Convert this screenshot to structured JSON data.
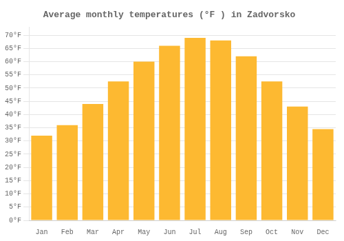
{
  "chart_data": {
    "type": "bar",
    "title": "Average monthly temperatures (°F ) in Zadvorsko",
    "categories": [
      "Jan",
      "Feb",
      "Mar",
      "Apr",
      "May",
      "Jun",
      "Jul",
      "Aug",
      "Sep",
      "Oct",
      "Nov",
      "Dec"
    ],
    "values": [
      32.0,
      36.0,
      44.0,
      52.5,
      60.0,
      66.0,
      69.0,
      68.0,
      62.0,
      52.5,
      43.0,
      34.5
    ],
    "color": "#FDB931",
    "ylim": [
      0,
      73
    ],
    "yticks": [
      {
        "value": 0,
        "label": "0°F"
      },
      {
        "value": 5,
        "label": "5°F"
      },
      {
        "value": 10,
        "label": "10°F"
      },
      {
        "value": 15,
        "label": "15°F"
      },
      {
        "value": 20,
        "label": "20°F"
      },
      {
        "value": 25,
        "label": "25°F"
      },
      {
        "value": 30,
        "label": "30°F"
      },
      {
        "value": 35,
        "label": "35°F"
      },
      {
        "value": 40,
        "label": "40°F"
      },
      {
        "value": 45,
        "label": "45°F"
      },
      {
        "value": 50,
        "label": "50°F"
      },
      {
        "value": 55,
        "label": "55°F"
      },
      {
        "value": 60,
        "label": "60°F"
      },
      {
        "value": 65,
        "label": "65°F"
      },
      {
        "value": 70,
        "label": "70°F"
      }
    ],
    "grid": true
  }
}
